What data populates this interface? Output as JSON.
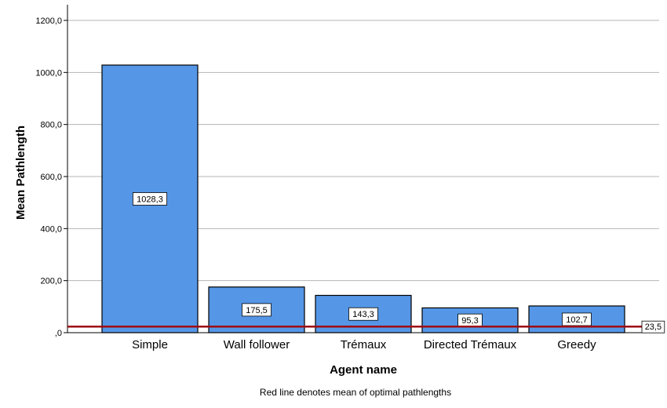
{
  "chart_data": {
    "type": "bar",
    "title": "",
    "xlabel": "Agent name",
    "ylabel": "Mean Pathlength",
    "categories": [
      "Simple",
      "Wall follower",
      "Trémaux",
      "Directed Trémaux",
      "Greedy"
    ],
    "values": [
      1028.3,
      175.5,
      143.3,
      95.3,
      102.7
    ],
    "value_labels": [
      "1028,3",
      "175,5",
      "143,3",
      "95,3",
      "102,7"
    ],
    "ylim": [
      0,
      1200
    ],
    "y_ticks": [
      0,
      200,
      400,
      600,
      800,
      1000,
      1200
    ],
    "y_tick_labels": [
      ",0",
      "200,0",
      "400,0",
      "600,0",
      "800,0",
      "1000,0",
      "1200,0"
    ],
    "grid": true,
    "bar_color": "#5596e6",
    "reference_line": {
      "value": 23.5,
      "label": "23,5",
      "color": "#9e0a12"
    },
    "footnote": "Red line denotes mean of optimal pathlengths"
  }
}
